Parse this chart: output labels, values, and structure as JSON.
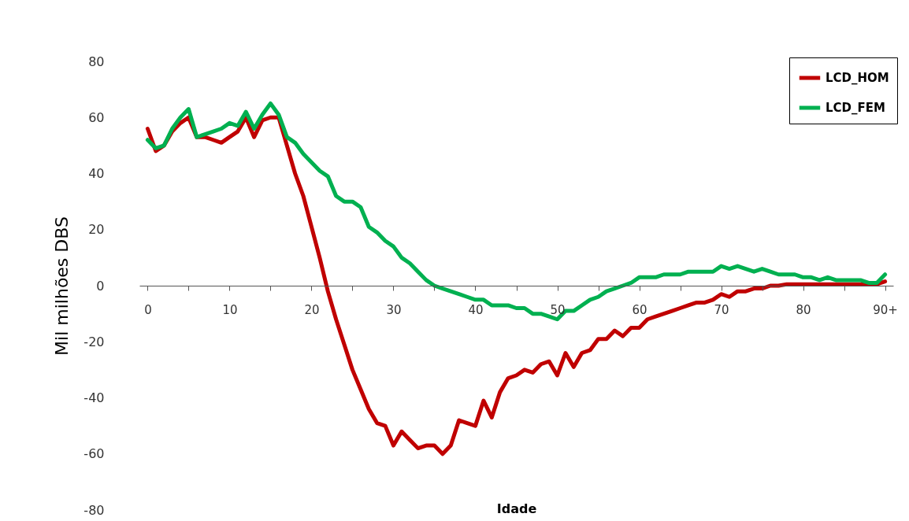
{
  "chart_data": {
    "type": "line",
    "xlabel": "Idade",
    "ylabel": "Mil milhões DBS",
    "x": [
      0,
      1,
      2,
      3,
      4,
      5,
      6,
      7,
      8,
      9,
      10,
      11,
      12,
      13,
      14,
      15,
      16,
      17,
      18,
      19,
      20,
      21,
      22,
      23,
      24,
      25,
      26,
      27,
      28,
      29,
      30,
      31,
      32,
      33,
      34,
      35,
      36,
      37,
      38,
      39,
      40,
      41,
      42,
      43,
      44,
      45,
      46,
      47,
      48,
      49,
      50,
      51,
      52,
      53,
      54,
      55,
      56,
      57,
      58,
      59,
      60,
      61,
      62,
      63,
      64,
      65,
      66,
      67,
      68,
      69,
      70,
      71,
      72,
      73,
      74,
      75,
      76,
      77,
      78,
      79,
      80,
      81,
      82,
      83,
      84,
      85,
      86,
      87,
      88,
      89,
      90
    ],
    "series": [
      {
        "name": "LCD_HOM",
        "color": "#c00000",
        "values": [
          56,
          48,
          50,
          55,
          58,
          60,
          53,
          53,
          52,
          51,
          53,
          55,
          60,
          53,
          59,
          60,
          60,
          50,
          40,
          32,
          21,
          10,
          -2,
          -12,
          -21,
          -30,
          -37,
          -44,
          -49,
          -50,
          -57,
          -52,
          -55,
          -58,
          -57,
          -57,
          -60,
          -57,
          -48,
          -49,
          -50,
          -41,
          -47,
          -38,
          -33,
          -32,
          -30,
          -31,
          -28,
          -27,
          -32,
          -24,
          -29,
          -24,
          -23,
          -19,
          -19,
          -16,
          -18,
          -15,
          -15,
          -12,
          -11,
          -10,
          -9,
          -8,
          -7,
          -6,
          -6,
          -5,
          -3,
          -4,
          -2,
          -2,
          -1,
          -1,
          0,
          0,
          0.5,
          0.5,
          0.5,
          0.5,
          0.5,
          0.5,
          0.5,
          0.5,
          0.5,
          0.5,
          0.5,
          0.5,
          1.5
        ]
      },
      {
        "name": "LCD_FEM",
        "color": "#00b050",
        "values": [
          52,
          49,
          50,
          56,
          60,
          63,
          53,
          54,
          55,
          56,
          58,
          57,
          62,
          56,
          61,
          65,
          61,
          53,
          51,
          47,
          44,
          41,
          39,
          32,
          30,
          30,
          28,
          21,
          19,
          16,
          14,
          10,
          8,
          5,
          2,
          0,
          -1,
          -2,
          -3,
          -4,
          -5,
          -5,
          -7,
          -7,
          -7,
          -8,
          -8,
          -10,
          -10,
          -11,
          -12,
          -9,
          -9,
          -7,
          -5,
          -4,
          -2,
          -1,
          0,
          1,
          3,
          3,
          3,
          4,
          4,
          4,
          5,
          5,
          5,
          5,
          7,
          6,
          7,
          6,
          5,
          6,
          5,
          4,
          4,
          4,
          3,
          3,
          2,
          3,
          2,
          2,
          2,
          2,
          1,
          1,
          4
        ]
      }
    ],
    "xlim": [
      -1,
      91
    ],
    "xticks": [
      0,
      {
        "value": 5,
        "label": null
      },
      10,
      {
        "value": 15,
        "label": null
      },
      20,
      {
        "value": 25,
        "label": null
      },
      30,
      {
        "value": 35,
        "label": null
      },
      40,
      {
        "value": 45,
        "label": null
      },
      50,
      {
        "value": 55,
        "label": null
      },
      60,
      {
        "value": 65,
        "label": null
      },
      70,
      {
        "value": 75,
        "label": null
      },
      80,
      {
        "value": 85,
        "label": null
      },
      {
        "value": 90,
        "label": "90+"
      }
    ],
    "ylim": [
      -80,
      80
    ],
    "yticks": [
      -80,
      -60,
      -40,
      -20,
      0,
      20,
      40,
      60,
      80
    ],
    "grid": false,
    "legend": "top right"
  }
}
